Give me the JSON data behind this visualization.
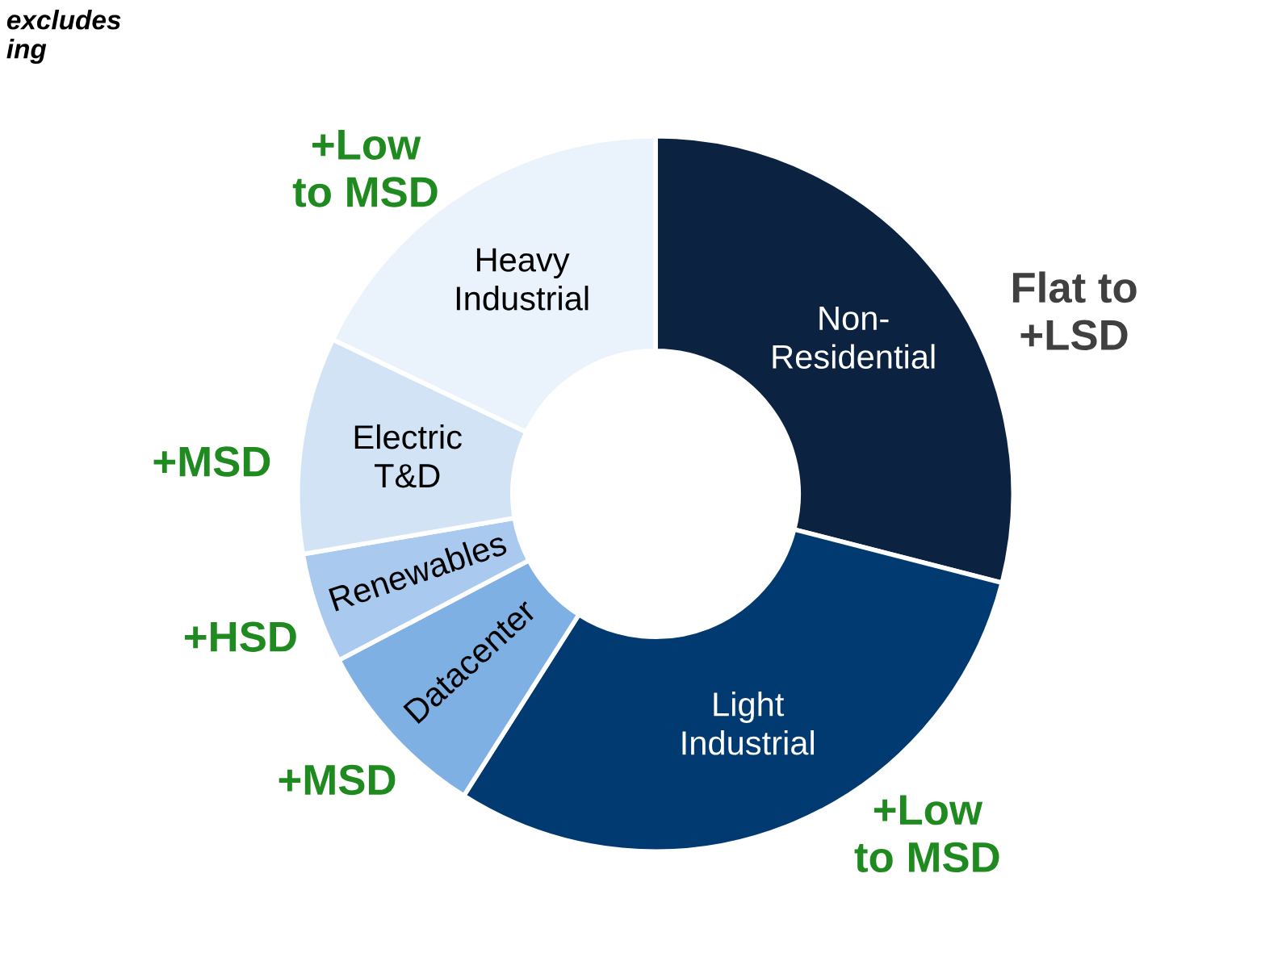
{
  "chart_data": {
    "type": "donut",
    "categories": [
      "Non-\nResidential",
      "Light\nIndustrial",
      "Datacenter",
      "Renewables",
      "Electric\nT&D",
      "Heavy\nIndustrial"
    ],
    "values": [
      29,
      30,
      8.3,
      5,
      9.8,
      17.9
    ],
    "colors": [
      "#0b2340",
      "#003a70",
      "#7fb0e3",
      "#a9c9ee",
      "#d3e3f6",
      "#eaf2fb"
    ],
    "annotations": [
      "Flat to\n+LSD",
      "+Low\nto MSD",
      "+MSD",
      "+HSD",
      "+MSD",
      "+Low\nto MSD",
      "excludes\ning"
    ]
  }
}
